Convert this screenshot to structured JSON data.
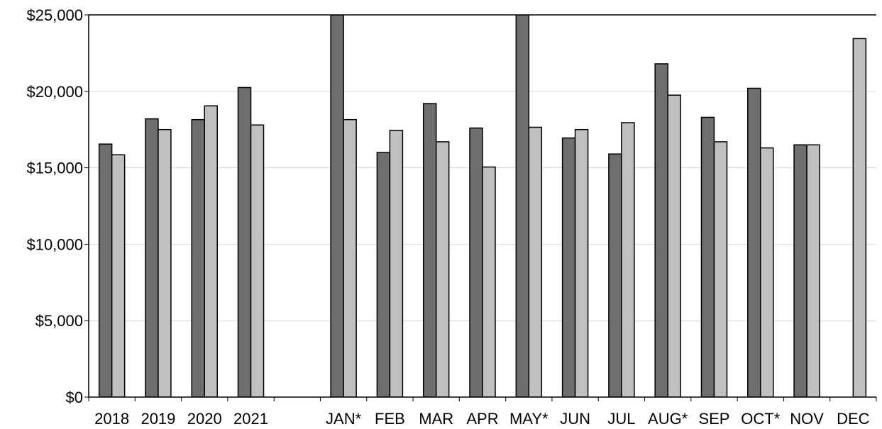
{
  "chart_data": {
    "type": "bar",
    "categories": [
      "2018",
      "2019",
      "2020",
      "2021",
      "",
      "JAN*",
      "FEB",
      "MAR",
      "APR",
      "MAY*",
      "JUN",
      "JUL",
      "AUG*",
      "SEP",
      "OCT*",
      "NOV",
      "DEC"
    ],
    "series": [
      {
        "values": [
          16550,
          18200,
          18150,
          20250,
          null,
          25000,
          16000,
          19200,
          17600,
          25000,
          16950,
          15900,
          21800,
          18300,
          20200,
          16500,
          null
        ],
        "color": "#6e6e6e"
      },
      {
        "values": [
          15850,
          17500,
          19050,
          17800,
          null,
          18150,
          17450,
          16700,
          15050,
          17650,
          17500,
          17950,
          19750,
          16700,
          16300,
          16500,
          23450
        ],
        "color": "#c0c0c0"
      }
    ],
    "ylim": [
      0,
      25000
    ],
    "yticks": [
      0,
      5000,
      10000,
      15000,
      20000,
      25000
    ],
    "ytick_labels": [
      "$0",
      "$5,000",
      "$10,000",
      "$15,000",
      "$20,000",
      "$25,000"
    ],
    "title": "",
    "xlabel": "",
    "ylabel": "",
    "grid": true,
    "legend": "none"
  }
}
